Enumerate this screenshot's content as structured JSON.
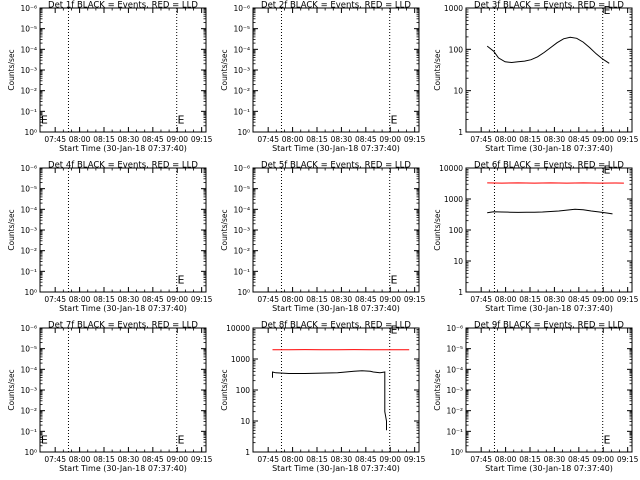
{
  "figure": {
    "xlabel": "Start Time (30-Jan-18 07:37:40)",
    "ylabel": "Counts/sec",
    "x_ticks": [
      "07:45",
      "08:00",
      "08:15",
      "08:30",
      "08:45",
      "09:00",
      "09:15"
    ],
    "colors": {
      "events": "#000000",
      "lld": "#ff0000",
      "axes": "#000000",
      "background": "#ffffff"
    }
  },
  "chart_data": [
    {
      "type": "line",
      "title": "Det 1f BLACK = Events, RED = LLD",
      "xlabel": "Start Time (30-Jan-18 07:37:40)",
      "ylabel": "Counts/sec",
      "x_range_minutes": [
        -2,
        100
      ],
      "y_scale": "log",
      "y_ticks": [
        "10⁰",
        "10⁻¹",
        "10⁻²",
        "10⁻³",
        "10⁻⁴",
        "10⁻⁵",
        "10⁻⁶"
      ],
      "y_tick_decades": [
        0,
        1,
        2,
        3,
        4,
        5,
        6
      ],
      "vlines_minutes": [
        15.5,
        82
      ],
      "markers": [
        {
          "label": "E",
          "x_minutes": -1.5,
          "y_decade": 0.6
        },
        {
          "label": "E",
          "x_minutes": 82.5,
          "y_decade": 0.6
        }
      ],
      "series": []
    },
    {
      "type": "line",
      "title": "Det 2f BLACK = Events, RED = LLD",
      "xlabel": "Start Time (30-Jan-18 07:37:40)",
      "ylabel": "Counts/sec",
      "x_range_minutes": [
        -2,
        100
      ],
      "y_scale": "log",
      "y_ticks": [
        "10⁰",
        "10⁻¹",
        "10⁻²",
        "10⁻³",
        "10⁻⁴",
        "10⁻⁵",
        "10⁻⁶"
      ],
      "y_tick_decades": [
        0,
        1,
        2,
        3,
        4,
        5,
        6
      ],
      "vlines_minutes": [
        15.5,
        82
      ],
      "markers": [
        {
          "label": "E",
          "x_minutes": 82.5,
          "y_decade": 0.6
        }
      ],
      "series": []
    },
    {
      "type": "line",
      "title": "Det 3f BLACK = Events, RED = LLD",
      "xlabel": "Start Time (30-Jan-18 07:37:40)",
      "ylabel": "Counts/sec",
      "x_range_minutes": [
        -2,
        100
      ],
      "y_scale": "log",
      "y_ticks": [
        "1",
        "10",
        "100",
        "1000"
      ],
      "y_tick_decades": [
        0,
        1,
        2,
        3
      ],
      "vlines_minutes": [
        15.5,
        82
      ],
      "markers": [
        {
          "label": "E",
          "x_minutes": 82.5,
          "y_decade": 2.95
        }
      ],
      "series": [
        {
          "color": "#000000",
          "x_minutes": [
            11,
            15,
            18,
            22,
            26,
            30,
            34,
            38,
            42,
            46,
            50,
            54,
            58,
            62,
            66,
            70,
            74,
            78,
            82,
            86
          ],
          "y": [
            120,
            90,
            62,
            50,
            48,
            50,
            52,
            56,
            66,
            84,
            110,
            145,
            180,
            195,
            185,
            150,
            110,
            78,
            58,
            46
          ]
        }
      ]
    },
    {
      "type": "line",
      "title": "Det 4f BLACK = Events, RED = LLD",
      "xlabel": "Start Time (30-Jan-18 07:37:40)",
      "ylabel": "Counts/sec",
      "x_range_minutes": [
        -2,
        100
      ],
      "y_scale": "log",
      "y_ticks": [
        "10⁰",
        "10⁻¹",
        "10⁻²",
        "10⁻³",
        "10⁻⁴",
        "10⁻⁵",
        "10⁻⁶"
      ],
      "y_tick_decades": [
        0,
        1,
        2,
        3,
        4,
        5,
        6
      ],
      "vlines_minutes": [
        15.5,
        82
      ],
      "markers": [
        {
          "label": "E",
          "x_minutes": 82.5,
          "y_decade": 0.6
        }
      ],
      "series": []
    },
    {
      "type": "line",
      "title": "Det 5f BLACK = Events, RED = LLD",
      "xlabel": "Start Time (30-Jan-18 07:37:40)",
      "ylabel": "Counts/sec",
      "x_range_minutes": [
        -2,
        100
      ],
      "y_scale": "log",
      "y_ticks": [
        "10⁰",
        "10⁻¹",
        "10⁻²",
        "10⁻³",
        "10⁻⁴",
        "10⁻⁵",
        "10⁻⁶"
      ],
      "y_tick_decades": [
        0,
        1,
        2,
        3,
        4,
        5,
        6
      ],
      "vlines_minutes": [
        15.5,
        82
      ],
      "markers": [
        {
          "label": "E",
          "x_minutes": 82.5,
          "y_decade": 0.6
        }
      ],
      "series": []
    },
    {
      "type": "line",
      "title": "Det 6f BLACK = Events, RED = LLD",
      "xlabel": "Start Time (30-Jan-18 07:37:40)",
      "ylabel": "Counts/sec",
      "x_range_minutes": [
        -2,
        100
      ],
      "y_scale": "log",
      "y_ticks": [
        "1",
        "10",
        "100",
        "1000",
        "10000"
      ],
      "y_tick_decades": [
        0,
        1,
        2,
        3,
        4
      ],
      "vlines_minutes": [
        15.5,
        82
      ],
      "markers": [
        {
          "label": "E",
          "x_minutes": 82.5,
          "y_decade": 3.95
        }
      ],
      "series": [
        {
          "color": "#ff0000",
          "x_minutes": [
            11,
            20,
            30,
            40,
            50,
            60,
            70,
            80,
            90,
            95
          ],
          "y": [
            3300,
            3250,
            3300,
            3250,
            3300,
            3250,
            3300,
            3250,
            3280,
            3250
          ]
        },
        {
          "color": "#000000",
          "x_minutes": [
            11,
            15,
            20,
            25,
            30,
            35,
            40,
            45,
            50,
            55,
            60,
            65,
            70,
            75,
            80,
            85,
            88
          ],
          "y": [
            360,
            390,
            380,
            375,
            370,
            372,
            375,
            380,
            395,
            410,
            440,
            470,
            450,
            410,
            380,
            350,
            330
          ]
        }
      ]
    },
    {
      "type": "line",
      "title": "Det 7f BLACK = Events, RED = LLD",
      "xlabel": "Start Time (30-Jan-18 07:37:40)",
      "ylabel": "Counts/sec",
      "x_range_minutes": [
        -2,
        100
      ],
      "y_scale": "log",
      "y_ticks": [
        "10⁰",
        "10⁻¹",
        "10⁻²",
        "10⁻³",
        "10⁻⁴",
        "10⁻⁵",
        "10⁻⁶"
      ],
      "y_tick_decades": [
        0,
        1,
        2,
        3,
        4,
        5,
        6
      ],
      "vlines_minutes": [
        15.5,
        82
      ],
      "markers": [
        {
          "label": "E",
          "x_minutes": -1.5,
          "y_decade": 0.6
        },
        {
          "label": "E",
          "x_minutes": 82.5,
          "y_decade": 0.6
        }
      ],
      "series": []
    },
    {
      "type": "line",
      "title": "Det 8f BLACK = Events, RED = LLD",
      "xlabel": "Start Time (30-Jan-18 07:37:40)",
      "ylabel": "Counts/sec",
      "x_range_minutes": [
        -2,
        100
      ],
      "y_scale": "log",
      "y_ticks": [
        "1",
        "10",
        "100",
        "1000",
        "10000"
      ],
      "y_tick_decades": [
        0,
        1,
        2,
        3,
        4
      ],
      "vlines_minutes": [
        15.5,
        82
      ],
      "markers": [
        {
          "label": "E",
          "x_minutes": 82.5,
          "y_decade": 3.95
        }
      ],
      "series": [
        {
          "color": "#ff0000",
          "x_minutes": [
            10,
            20,
            30,
            40,
            50,
            60,
            70,
            80,
            90,
            94
          ],
          "y": [
            2000,
            2000,
            2010,
            2000,
            2000,
            2010,
            2000,
            2000,
            2000,
            2000
          ]
        },
        {
          "color": "#000000",
          "x_minutes": [
            10,
            10,
            12,
            20,
            30,
            40,
            50,
            55,
            60,
            65,
            70,
            72,
            76,
            79,
            79,
            80,
            80
          ],
          "y": [
            250,
            380,
            360,
            340,
            340,
            350,
            360,
            380,
            400,
            420,
            400,
            380,
            360,
            380,
            20,
            10,
            5
          ]
        }
      ]
    },
    {
      "type": "line",
      "title": "Det 9f BLACK = Events, RED = LLD",
      "xlabel": "Start Time (30-Jan-18 07:37:40)",
      "ylabel": "Counts/sec",
      "x_range_minutes": [
        -2,
        100
      ],
      "y_scale": "log",
      "y_ticks": [
        "10⁰",
        "10⁻¹",
        "10⁻²",
        "10⁻³",
        "10⁻⁴",
        "10⁻⁵",
        "10⁻⁶"
      ],
      "y_tick_decades": [
        0,
        1,
        2,
        3,
        4,
        5,
        6
      ],
      "vlines_minutes": [
        15.5,
        82
      ],
      "markers": [
        {
          "label": "E",
          "x_minutes": 82.5,
          "y_decade": 0.6
        }
      ],
      "series": []
    }
  ]
}
